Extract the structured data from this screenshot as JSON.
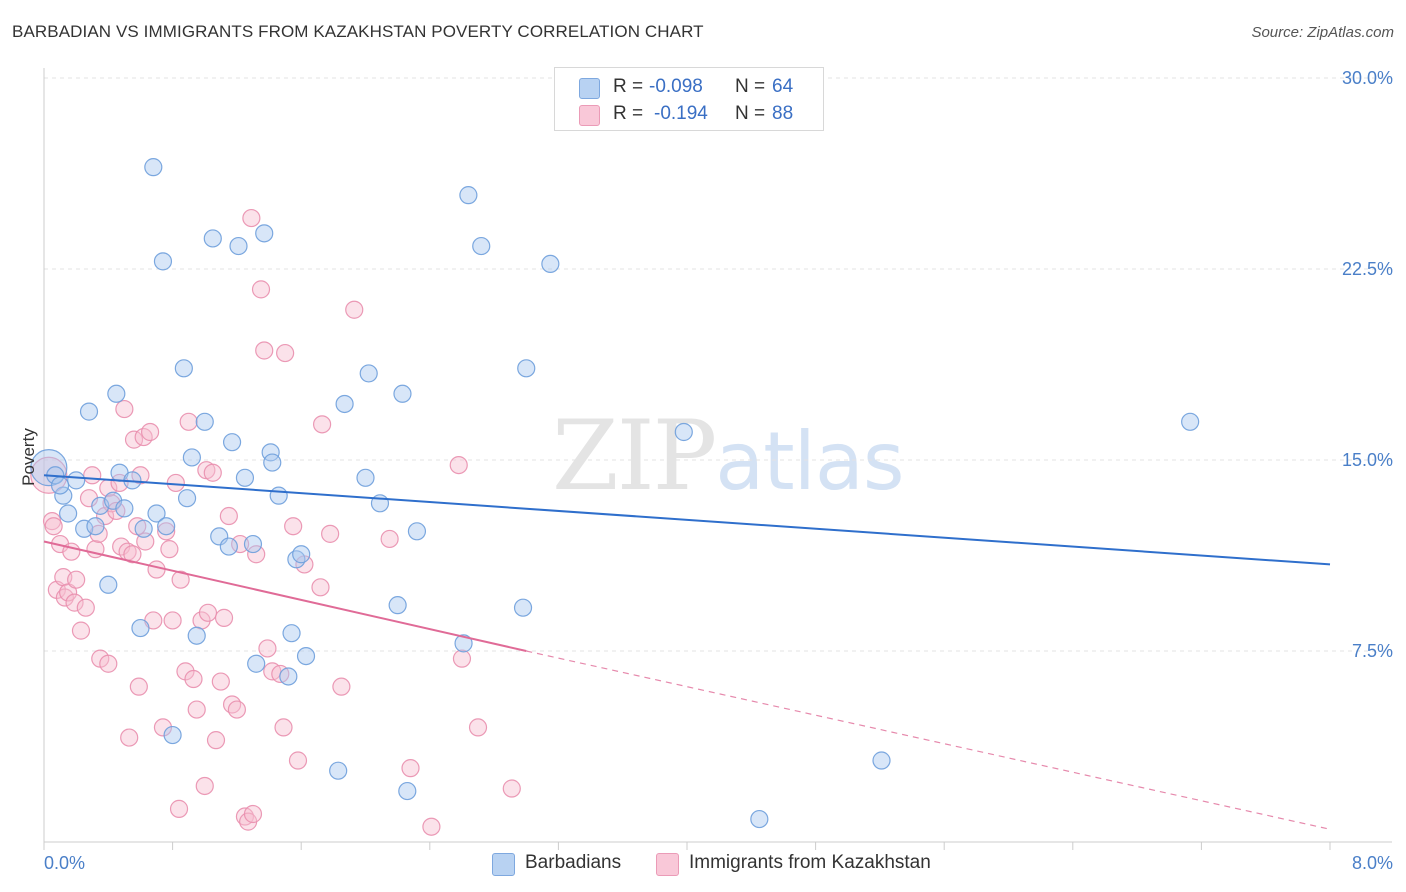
{
  "title": "BARBADIAN VS IMMIGRANTS FROM KAZAKHSTAN POVERTY CORRELATION CHART",
  "source": "Source: ZipAtlas.com",
  "watermark": {
    "zip": "ZIP",
    "atlas": "atlas"
  },
  "legend": {
    "rows": [
      {
        "r_label": "R =",
        "r_value": "-0.098",
        "n_label": "N =",
        "n_value": "64"
      },
      {
        "r_label": "R =",
        "r_value": "-0.194",
        "n_label": "N =",
        "n_value": "88"
      }
    ]
  },
  "bottom_legend": [
    "Barbadians",
    "Immigrants from Kazakhstan"
  ],
  "colors": {
    "blue_fill": "#a9c8ef",
    "blue_stroke": "#6e9fdc",
    "blue_line": "#2f6fcc",
    "pink_fill": "#f7bfd1",
    "pink_stroke": "#e98fae",
    "pink_line": "#e06b97",
    "axis_text": "#4a7fc8",
    "grid": "#e3e3e3"
  },
  "chart_data": {
    "type": "scatter",
    "title": "BARBADIAN VS IMMIGRANTS FROM KAZAKHSTAN POVERTY CORRELATION CHART",
    "xlabel": "",
    "ylabel": "Poverty",
    "xlim": [
      0.0,
      8.0
    ],
    "ylim": [
      0.0,
      30.0
    ],
    "x_tick_labels": [
      "0.0%",
      "8.0%"
    ],
    "y_ticks": [
      7.5,
      15.0,
      22.5,
      30.0
    ],
    "y_tick_labels": [
      "7.5%",
      "15.0%",
      "22.5%",
      "30.0%"
    ],
    "series": [
      {
        "name": "Barbadians",
        "color": "#a9c8ef",
        "R": -0.098,
        "N": 64,
        "trend": {
          "x": [
            0.0,
            8.0
          ],
          "y": [
            14.4,
            10.9
          ],
          "style": "solid"
        },
        "points": [
          {
            "x": 0.03,
            "y": 14.7,
            "big": true
          },
          {
            "x": 0.07,
            "y": 14.4
          },
          {
            "x": 0.12,
            "y": 13.6
          },
          {
            "x": 0.15,
            "y": 12.9
          },
          {
            "x": 0.2,
            "y": 14.2
          },
          {
            "x": 0.25,
            "y": 12.3
          },
          {
            "x": 0.28,
            "y": 16.9
          },
          {
            "x": 0.32,
            "y": 12.4
          },
          {
            "x": 0.35,
            "y": 13.2
          },
          {
            "x": 0.4,
            "y": 10.1
          },
          {
            "x": 0.43,
            "y": 13.4
          },
          {
            "x": 0.45,
            "y": 17.6
          },
          {
            "x": 0.47,
            "y": 14.5
          },
          {
            "x": 0.5,
            "y": 13.1
          },
          {
            "x": 0.55,
            "y": 14.2
          },
          {
            "x": 0.6,
            "y": 8.4
          },
          {
            "x": 0.62,
            "y": 12.3
          },
          {
            "x": 0.68,
            "y": 26.5
          },
          {
            "x": 0.7,
            "y": 12.9
          },
          {
            "x": 0.74,
            "y": 22.8
          },
          {
            "x": 0.76,
            "y": 12.4
          },
          {
            "x": 0.8,
            "y": 4.2
          },
          {
            "x": 0.87,
            "y": 18.6
          },
          {
            "x": 0.89,
            "y": 13.5
          },
          {
            "x": 0.92,
            "y": 15.1
          },
          {
            "x": 0.95,
            "y": 8.1
          },
          {
            "x": 1.0,
            "y": 16.5
          },
          {
            "x": 1.05,
            "y": 23.7
          },
          {
            "x": 1.09,
            "y": 12.0
          },
          {
            "x": 1.15,
            "y": 11.6
          },
          {
            "x": 1.17,
            "y": 15.7
          },
          {
            "x": 1.21,
            "y": 23.4
          },
          {
            "x": 1.25,
            "y": 14.3
          },
          {
            "x": 1.3,
            "y": 11.7
          },
          {
            "x": 1.32,
            "y": 7.0
          },
          {
            "x": 1.37,
            "y": 23.9
          },
          {
            "x": 1.41,
            "y": 15.3
          },
          {
            "x": 1.42,
            "y": 14.9
          },
          {
            "x": 1.46,
            "y": 13.6
          },
          {
            "x": 1.52,
            "y": 6.5
          },
          {
            "x": 1.54,
            "y": 8.2
          },
          {
            "x": 1.57,
            "y": 11.1
          },
          {
            "x": 1.6,
            "y": 11.3
          },
          {
            "x": 1.63,
            "y": 7.3
          },
          {
            "x": 1.83,
            "y": 2.8
          },
          {
            "x": 1.87,
            "y": 17.2
          },
          {
            "x": 2.0,
            "y": 14.3
          },
          {
            "x": 2.02,
            "y": 18.4
          },
          {
            "x": 2.09,
            "y": 13.3
          },
          {
            "x": 2.2,
            "y": 9.3
          },
          {
            "x": 2.23,
            "y": 17.6
          },
          {
            "x": 2.26,
            "y": 2.0
          },
          {
            "x": 2.32,
            "y": 12.2
          },
          {
            "x": 2.61,
            "y": 7.8
          },
          {
            "x": 2.64,
            "y": 25.4
          },
          {
            "x": 2.72,
            "y": 23.4
          },
          {
            "x": 2.98,
            "y": 9.2
          },
          {
            "x": 3.0,
            "y": 18.6
          },
          {
            "x": 3.15,
            "y": 22.7
          },
          {
            "x": 3.98,
            "y": 16.1
          },
          {
            "x": 4.45,
            "y": 0.9
          },
          {
            "x": 5.21,
            "y": 3.2
          },
          {
            "x": 7.13,
            "y": 16.5
          },
          {
            "x": 0.1,
            "y": 14.0
          }
        ]
      },
      {
        "name": "Immigrants from Kazakhstan",
        "color": "#f7bfd1",
        "R": -0.194,
        "N": 88,
        "trend": {
          "x": [
            0.0,
            3.0
          ],
          "y": [
            11.8,
            7.5
          ],
          "style": "solid"
        },
        "trend_extension": {
          "x": [
            3.0,
            8.0
          ],
          "y": [
            7.5,
            0.5
          ],
          "style": "dashed"
        },
        "points": [
          {
            "x": 0.03,
            "y": 14.4,
            "big": true
          },
          {
            "x": 0.05,
            "y": 12.6
          },
          {
            "x": 0.06,
            "y": 12.4
          },
          {
            "x": 0.08,
            "y": 9.9
          },
          {
            "x": 0.1,
            "y": 11.7
          },
          {
            "x": 0.12,
            "y": 10.4
          },
          {
            "x": 0.13,
            "y": 9.6
          },
          {
            "x": 0.15,
            "y": 9.8
          },
          {
            "x": 0.17,
            "y": 11.4
          },
          {
            "x": 0.19,
            "y": 9.4
          },
          {
            "x": 0.2,
            "y": 10.3
          },
          {
            "x": 0.23,
            "y": 8.3
          },
          {
            "x": 0.26,
            "y": 9.2
          },
          {
            "x": 0.28,
            "y": 13.5
          },
          {
            "x": 0.3,
            "y": 14.4
          },
          {
            "x": 0.32,
            "y": 11.5
          },
          {
            "x": 0.34,
            "y": 12.1
          },
          {
            "x": 0.35,
            "y": 7.2
          },
          {
            "x": 0.38,
            "y": 12.8
          },
          {
            "x": 0.4,
            "y": 13.9
          },
          {
            "x": 0.42,
            "y": 13.3
          },
          {
            "x": 0.45,
            "y": 13.0
          },
          {
            "x": 0.47,
            "y": 14.1
          },
          {
            "x": 0.48,
            "y": 11.6
          },
          {
            "x": 0.5,
            "y": 17.0
          },
          {
            "x": 0.52,
            "y": 11.4
          },
          {
            "x": 0.53,
            "y": 4.1
          },
          {
            "x": 0.55,
            "y": 11.3
          },
          {
            "x": 0.56,
            "y": 15.8
          },
          {
            "x": 0.59,
            "y": 6.1
          },
          {
            "x": 0.6,
            "y": 14.4
          },
          {
            "x": 0.62,
            "y": 15.9
          },
          {
            "x": 0.63,
            "y": 11.8
          },
          {
            "x": 0.66,
            "y": 16.1
          },
          {
            "x": 0.68,
            "y": 8.7
          },
          {
            "x": 0.7,
            "y": 10.7
          },
          {
            "x": 0.74,
            "y": 4.5
          },
          {
            "x": 0.76,
            "y": 12.2
          },
          {
            "x": 0.78,
            "y": 11.5
          },
          {
            "x": 0.8,
            "y": 8.7
          },
          {
            "x": 0.82,
            "y": 14.1
          },
          {
            "x": 0.84,
            "y": 1.3
          },
          {
            "x": 0.85,
            "y": 10.3
          },
          {
            "x": 0.88,
            "y": 6.7
          },
          {
            "x": 0.9,
            "y": 16.5
          },
          {
            "x": 0.93,
            "y": 6.4
          },
          {
            "x": 0.95,
            "y": 5.2
          },
          {
            "x": 0.98,
            "y": 8.7
          },
          {
            "x": 1.0,
            "y": 2.2
          },
          {
            "x": 1.01,
            "y": 14.6
          },
          {
            "x": 1.02,
            "y": 9.0
          },
          {
            "x": 1.05,
            "y": 14.5
          },
          {
            "x": 1.07,
            "y": 4.0
          },
          {
            "x": 1.1,
            "y": 6.3
          },
          {
            "x": 1.12,
            "y": 8.8
          },
          {
            "x": 1.15,
            "y": 12.8
          },
          {
            "x": 1.17,
            "y": 5.4
          },
          {
            "x": 1.2,
            "y": 5.2
          },
          {
            "x": 1.22,
            "y": 11.7
          },
          {
            "x": 1.25,
            "y": 1.0
          },
          {
            "x": 1.27,
            "y": 0.8
          },
          {
            "x": 1.29,
            "y": 24.5
          },
          {
            "x": 1.3,
            "y": 1.1
          },
          {
            "x": 1.32,
            "y": 11.3
          },
          {
            "x": 1.35,
            "y": 21.7
          },
          {
            "x": 1.37,
            "y": 19.3
          },
          {
            "x": 1.39,
            "y": 7.6
          },
          {
            "x": 1.42,
            "y": 6.7
          },
          {
            "x": 1.47,
            "y": 6.6
          },
          {
            "x": 1.49,
            "y": 4.5
          },
          {
            "x": 1.5,
            "y": 19.2
          },
          {
            "x": 1.55,
            "y": 12.4
          },
          {
            "x": 1.58,
            "y": 3.2
          },
          {
            "x": 1.62,
            "y": 10.9
          },
          {
            "x": 1.72,
            "y": 10.0
          },
          {
            "x": 1.73,
            "y": 16.4
          },
          {
            "x": 1.78,
            "y": 12.1
          },
          {
            "x": 1.85,
            "y": 6.1
          },
          {
            "x": 1.93,
            "y": 20.9
          },
          {
            "x": 2.15,
            "y": 11.9
          },
          {
            "x": 2.28,
            "y": 2.9
          },
          {
            "x": 2.41,
            "y": 0.6
          },
          {
            "x": 2.58,
            "y": 14.8
          },
          {
            "x": 2.6,
            "y": 7.2
          },
          {
            "x": 2.7,
            "y": 4.5
          },
          {
            "x": 2.91,
            "y": 2.1
          },
          {
            "x": 0.4,
            "y": 7.0
          },
          {
            "x": 0.58,
            "y": 12.4
          }
        ]
      }
    ]
  }
}
